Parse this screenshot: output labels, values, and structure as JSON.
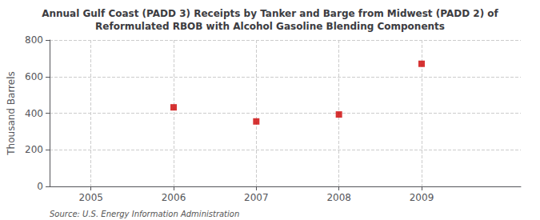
{
  "chart_data": {
    "type": "scatter",
    "title": "Annual Gulf Coast (PADD 3) Receipts by Tanker and Barge from Midwest (PADD 2) of\nReformulated RBOB with Alcohol Gasoline Blending Components",
    "ylabel": "Thousand Barrels",
    "x": [
      2006,
      2007,
      2008,
      2009
    ],
    "values": [
      432,
      355,
      393,
      670
    ],
    "xlim": [
      2004.5,
      2010.2
    ],
    "ylim": [
      0,
      800
    ],
    "xticks": [
      2005,
      2006,
      2007,
      2008,
      2009
    ],
    "yticks": [
      0,
      200,
      400,
      600,
      800
    ],
    "color": "#cc0000",
    "marker": "square",
    "grid": true,
    "annotation": "Source: U.S. Energy Information Administration"
  }
}
